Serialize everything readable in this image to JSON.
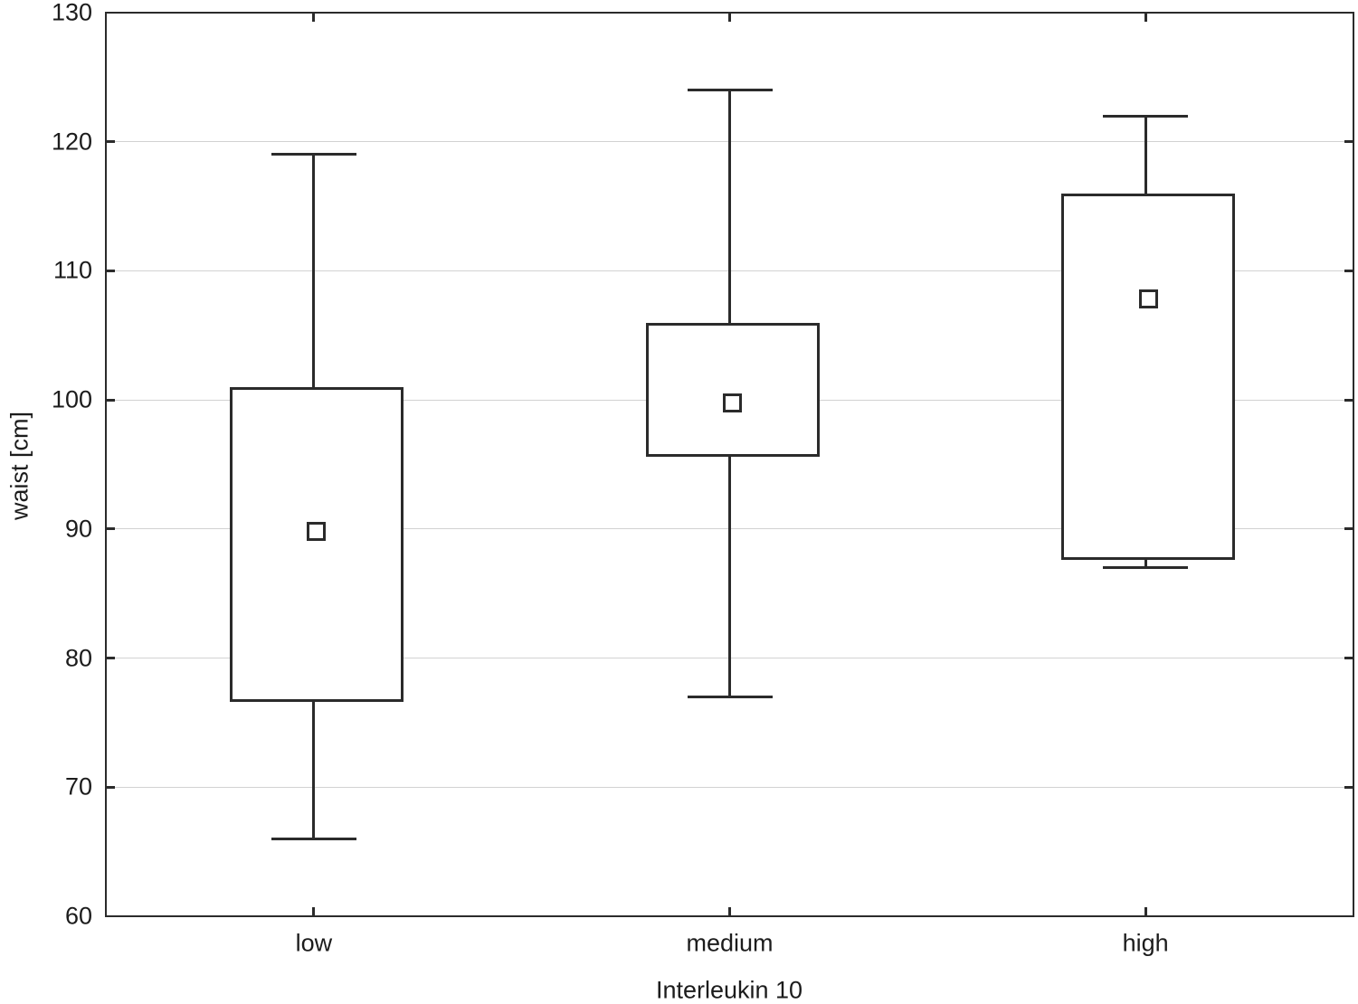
{
  "chart_data": {
    "type": "box",
    "title": "",
    "xlabel": "Interleukin 10",
    "ylabel": "waist [cm]",
    "categories": [
      "low",
      "medium",
      "high"
    ],
    "y_axis": {
      "min": 60,
      "max": 130,
      "tick_step": 10,
      "ticks": [
        60,
        70,
        80,
        90,
        100,
        110,
        120,
        130
      ],
      "tick_labels": [
        "60",
        "70",
        "80",
        "90",
        "100",
        "110",
        "120",
        "130"
      ]
    },
    "grid": "horizontal-light-gray",
    "legend": "none",
    "marker": "open-square-at-median",
    "series": [
      {
        "category": "low",
        "whisker_low": 66,
        "q1": 77,
        "median": 90,
        "q3": 101,
        "whisker_high": 119
      },
      {
        "category": "medium",
        "whisker_low": 77,
        "q1": 96,
        "median": 100,
        "q3": 106,
        "whisker_high": 124
      },
      {
        "category": "high",
        "whisker_low": 87,
        "q1": 88,
        "median": 108,
        "q3": 116,
        "whisker_high": 122
      }
    ],
    "colors": {
      "line": "#2b2b2b",
      "grid": "#d2d2d2",
      "text": "#1c1c1c",
      "background": "#ffffff",
      "box_fill": "#ffffff"
    }
  }
}
